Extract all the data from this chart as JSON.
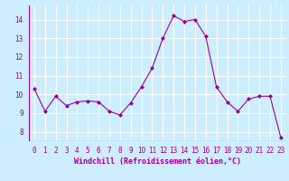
{
  "x": [
    0,
    1,
    2,
    3,
    4,
    5,
    6,
    7,
    8,
    9,
    10,
    11,
    12,
    13,
    14,
    15,
    16,
    17,
    18,
    19,
    20,
    21,
    22,
    23
  ],
  "y": [
    10.3,
    9.1,
    9.9,
    9.4,
    9.6,
    9.65,
    9.6,
    9.1,
    8.9,
    9.55,
    10.4,
    11.4,
    13.0,
    14.2,
    13.9,
    14.0,
    13.1,
    10.4,
    9.6,
    9.1,
    9.75,
    9.9,
    9.9,
    7.7
  ],
  "line_color": "#990099",
  "marker": "D",
  "marker_size": 2,
  "bg_color": "#cceeff",
  "grid_color": "#ffffff",
  "xlabel": "Windchill (Refroidissement éolien,°C)",
  "xlabel_color": "#990099",
  "tick_color": "#990099",
  "xlim": [
    -0.5,
    23.5
  ],
  "ylim": [
    7.5,
    14.75
  ],
  "yticks": [
    8,
    9,
    10,
    11,
    12,
    13,
    14
  ],
  "xticks": [
    0,
    1,
    2,
    3,
    4,
    5,
    6,
    7,
    8,
    9,
    10,
    11,
    12,
    13,
    14,
    15,
    16,
    17,
    18,
    19,
    20,
    21,
    22,
    23
  ],
  "tick_fontsize": 5.5,
  "xlabel_fontsize": 6.0
}
